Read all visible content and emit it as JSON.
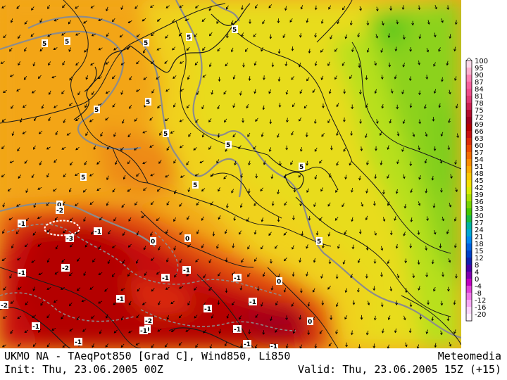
{
  "footer": {
    "title": "UKMO NA - TAeqPot850 [Grad C], Wind850, Li850",
    "brand": "Meteomedia",
    "init": "Init: Thu, 23.06.2005 00Z",
    "valid": "Valid: Thu, 23.06.2005 15Z (+15)"
  },
  "legend": {
    "labels": [
      "100",
      "95",
      "90",
      "87",
      "84",
      "81",
      "78",
      "75",
      "72",
      "69",
      "66",
      "63",
      "60",
      "57",
      "54",
      "51",
      "48",
      "45",
      "42",
      "39",
      "36",
      "33",
      "30",
      "27",
      "24",
      "21",
      "18",
      "15",
      "12",
      "8",
      "4",
      "0",
      "-4",
      "-8",
      "-12",
      "-16",
      "-20"
    ],
    "colors": [
      "#ffd8e8",
      "#ffb0cc",
      "#ff80b0",
      "#f8609c",
      "#f04c88",
      "#e03870",
      "#cc2050",
      "#b40c2c",
      "#a0001c",
      "#b40000",
      "#c81010",
      "#dc2c08",
      "#ec4a00",
      "#f46c00",
      "#fa8c00",
      "#fcaa00",
      "#fcc800",
      "#f4e000",
      "#d8ec00",
      "#a8e000",
      "#78d400",
      "#44c800",
      "#18bc40",
      "#00b4a0",
      "#00a8d4",
      "#0088f0",
      "#0060e0",
      "#0040c8",
      "#1020b0",
      "#4800a8",
      "#8000b0",
      "#c000c0",
      "#e040d8",
      "#f078e8",
      "#f8a8f4",
      "#fcd4fc",
      "#fff0ff"
    ]
  },
  "isoline_labels": [
    "5",
    "5",
    "5",
    "5",
    "5",
    "5",
    "5",
    "5",
    "5",
    "5",
    "5",
    "5",
    "5",
    "0",
    "0",
    "0",
    "0",
    "0",
    "0",
    "-1",
    "-1",
    "-1",
    "-1",
    "-1",
    "-1",
    "-1",
    "-1",
    "-1",
    "-1",
    "-1",
    "-1",
    "-1",
    "-1",
    "-1",
    "-2",
    "-2",
    "-2",
    "-2",
    "-3"
  ],
  "colors": {
    "border": "#1a1a1a",
    "isoline": "#8c8c8c",
    "wind": "#000000"
  }
}
